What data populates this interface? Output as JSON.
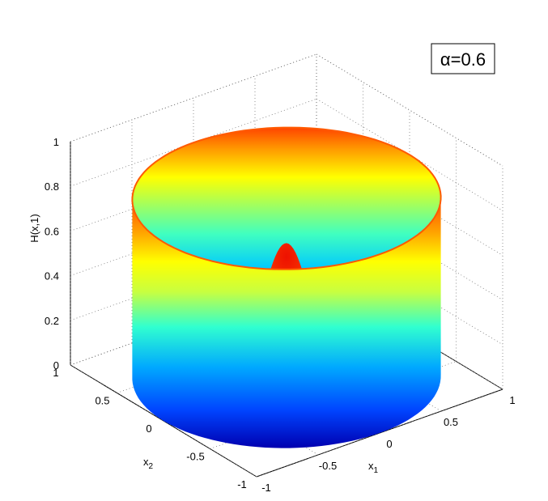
{
  "chart_data": {
    "type": "surface3d",
    "title": "",
    "annotation": "α=0.6",
    "xlabel": "x",
    "xlabel_sub": "1",
    "ylabel": "x",
    "ylabel_sub": "2",
    "zlabel": "H(x,1)",
    "xlim": [
      -1,
      1
    ],
    "ylim": [
      -1,
      1
    ],
    "zlim": [
      0,
      1
    ],
    "x_ticks": [
      "-1",
      "-0.5",
      "0",
      "0.5",
      "1"
    ],
    "y_ticks": [
      "-1",
      "-0.5",
      "0",
      "0.5",
      "1"
    ],
    "z_ticks": [
      "0",
      "0.2",
      "0.4",
      "0.6",
      "0.8",
      "1"
    ],
    "grid": true,
    "colormap": "jet",
    "wall_radius": 1,
    "wall_height": 0.8,
    "center_peak_height": 0.6,
    "center_peak_radius": 0.3
  }
}
